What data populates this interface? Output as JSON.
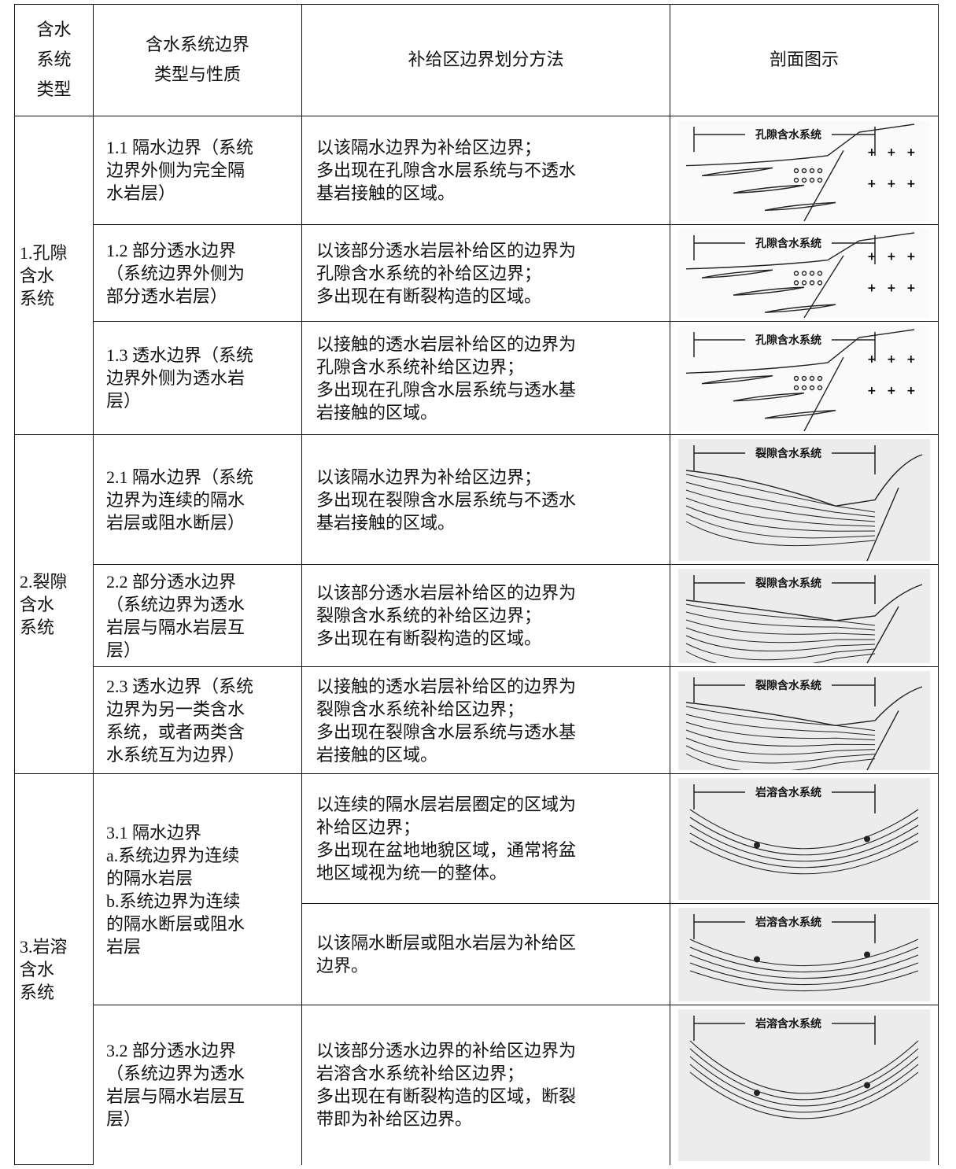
{
  "header": [
    [
      "含水",
      "系统",
      "类型"
    ],
    [
      "含水系统边界",
      "类型与性质"
    ],
    [
      "补给区边界划分方法"
    ],
    [
      "剖面图示"
    ]
  ],
  "groups": [
    {
      "name": [
        "1.孔隙",
        "含水",
        "系统"
      ],
      "boundaries": [
        {
          "lines": [
            "1.1 隔水边界（系统",
            "边界外侧为完全隔",
            "水岩层）"
          ],
          "parts": [
            {
              "method": [
                "以该隔水边界为补给区边界；",
                "多出现在孔隙含水层系统与不透水",
                "基岩接触的区域。"
              ],
              "figure": "孔隙含水系统"
            }
          ]
        },
        {
          "lines": [
            "1.2 部分透水边界",
            "（系统边界外侧为",
            "部分透水岩层）"
          ],
          "parts": [
            {
              "method": [
                "以该部分透水岩层补给区的边界为",
                "孔隙含水系统的补给区边界；",
                "多出现在有断裂构造的区域。"
              ],
              "figure": "孔隙含水系统"
            }
          ]
        },
        {
          "lines": [
            "1.3 透水边界（系统",
            "边界外侧为透水岩",
            "层）"
          ],
          "parts": [
            {
              "method": [
                "以接触的透水岩层补给区的边界为",
                "孔隙含水系统补给区边界；",
                "多出现在孔隙含水层系统与透水基",
                "岩接触的区域。"
              ],
              "figure": "孔隙含水系统"
            }
          ]
        }
      ]
    },
    {
      "name": [
        "2.裂隙",
        "含水",
        "系统"
      ],
      "boundaries": [
        {
          "lines": [
            "2.1 隔水边界（系统",
            "边界为连续的隔水",
            "岩层或阻水断层）"
          ],
          "parts": [
            {
              "method": [
                "以该隔水边界为补给区边界；",
                "多出现在裂隙含水层系统与不透水",
                "基岩接触的区域。"
              ],
              "figure": "裂隙含水系统"
            }
          ]
        },
        {
          "lines": [
            "2.2 部分透水边界",
            "（系统边界为透水",
            "岩层与隔水岩层互",
            "层）"
          ],
          "parts": [
            {
              "method": [
                "以该部分透水岩层补给区的边界为",
                "裂隙含水系统的补给区边界；",
                "多出现在有断裂构造的区域。"
              ],
              "figure": "裂隙含水系统"
            }
          ]
        },
        {
          "lines": [
            "2.3 透水边界（系统",
            "边界为另一类含水",
            "系统，或者两类含",
            "水系统互为边界）"
          ],
          "parts": [
            {
              "method": [
                "以接触的透水岩层补给区的边界为",
                "裂隙含水系统补给区边界；",
                "多出现在裂隙含水层系统与透水基",
                "岩接触的区域。"
              ],
              "figure": "裂隙含水系统"
            }
          ]
        }
      ]
    },
    {
      "name": [
        "3.岩溶",
        "含水",
        "系统"
      ],
      "boundaries": [
        {
          "lines": [
            "3.1 隔水边界",
            "a.系统边界为连续",
            "的隔水岩层",
            "b.系统边界为连续",
            "的隔水断层或阻水",
            "岩层"
          ],
          "parts": [
            {
              "method": [
                "以连续的隔水层岩层圈定的区域为",
                "补给区边界；",
                "多出现在盆地地貌区域，通常将盆",
                "地区域视为统一的整体。"
              ],
              "figure": "岩溶含水系统"
            },
            {
              "method": [
                "以该隔水断层或阻水岩层为补给区",
                "边界。"
              ],
              "figure": "岩溶含水系统"
            }
          ]
        },
        {
          "lines": [
            "3.2 部分透水边界",
            "（系统边界为透水",
            "岩层与隔水岩层互",
            "层）"
          ],
          "parts": [
            {
              "method": [
                "以该部分透水边界的补给区边界为",
                "岩溶含水系统补给区边界；",
                "多出现在有断裂构造的区域，断裂",
                "带即为补给区边界。"
              ],
              "figure": "岩溶含水系统"
            }
          ]
        }
      ]
    }
  ]
}
